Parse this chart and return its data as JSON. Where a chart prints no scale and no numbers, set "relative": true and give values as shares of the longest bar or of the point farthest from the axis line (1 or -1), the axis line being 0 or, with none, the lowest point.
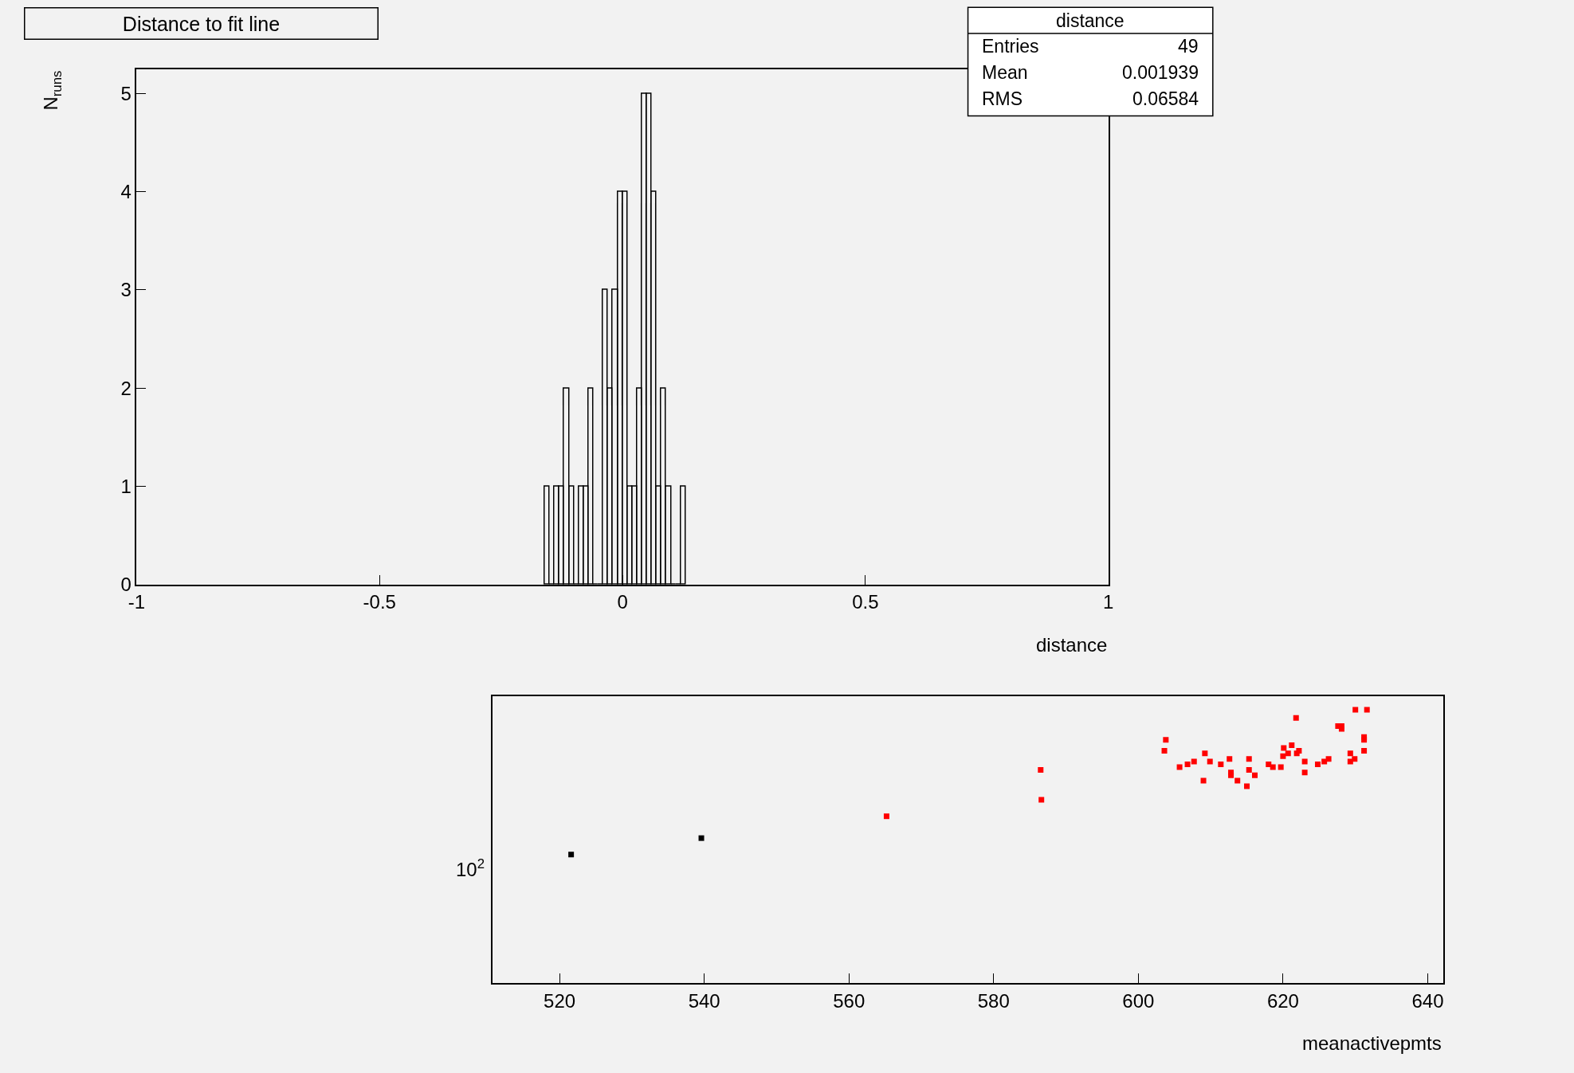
{
  "chart_data": [
    {
      "type": "histogram",
      "title": "Distance to fit line",
      "xlabel": "distance",
      "ylabel": "N$_{runs}$",
      "bins": [
        -0.16,
        -0.15,
        -0.14,
        -0.13,
        -0.12,
        -0.11,
        -0.1,
        -0.09,
        -0.08,
        -0.07,
        -0.06,
        -0.05,
        -0.04,
        -0.03,
        -0.02,
        -0.01,
        0.0,
        0.01,
        0.02,
        0.03,
        0.04,
        0.05,
        0.06,
        0.07,
        0.08,
        0.09,
        0.1,
        0.11,
        0.12,
        0.13
      ],
      "values": [
        1,
        0,
        1,
        1,
        2,
        1,
        0,
        1,
        1,
        2,
        0,
        0,
        3,
        2,
        3,
        4,
        4,
        1,
        1,
        2,
        5,
        5,
        4,
        1,
        2,
        1,
        0,
        0,
        1
      ],
      "color": "#000000",
      "xlim": [
        -1,
        1
      ],
      "xticks": [
        -1,
        -0.5,
        0,
        0.5,
        1
      ],
      "ylim": [
        0,
        5.25
      ],
      "yticks": [
        0,
        1,
        2,
        3,
        4,
        5
      ],
      "grid": false,
      "annotations": [
        "distance",
        "Entries",
        "49",
        "Mean",
        "0.001939",
        "RMS",
        "0.06584"
      ]
    },
    {
      "type": "scatter",
      "xlabel": "meanactivepmts",
      "relative": true,
      "marker": "square",
      "grid": false,
      "xlim": [
        510.7,
        642.2
      ],
      "xticks": [
        520,
        540,
        560,
        580,
        600,
        620,
        640
      ],
      "annotations": [
        "10$^{2}$"
      ],
      "series": [
        {
          "color": "#000000",
          "x": [
            521.6,
            539.6
          ],
          "values": [
            0.47,
            0.53
          ]
        },
        {
          "color": "#ff0000",
          "x": [
            565.2,
            586.5,
            586.6,
            603.8,
            603.6,
            605.7,
            606.8,
            607.7,
            609.2,
            609.0,
            609.9,
            611.4,
            612.6,
            612.8,
            612.8,
            613.7,
            615.0,
            615.3,
            615.3,
            616.1,
            618.0,
            618.6,
            619.7,
            620.0,
            620.1,
            620.7,
            621.2,
            621.8,
            621.9,
            622.2,
            623.0,
            623.0,
            624.8,
            625.7,
            626.3,
            627.6,
            628.1,
            628.1,
            629.3,
            629.3,
            629.9,
            630.0,
            631.2,
            631.2,
            631.2,
            631.6
          ],
          "values": [
            0.61,
            0.78,
            0.67,
            0.89,
            0.85,
            0.79,
            0.8,
            0.81,
            0.84,
            0.74,
            0.81,
            0.8,
            0.82,
            0.77,
            0.76,
            0.74,
            0.72,
            0.82,
            0.78,
            0.76,
            0.8,
            0.79,
            0.79,
            0.83,
            0.86,
            0.84,
            0.87,
            0.97,
            0.84,
            0.85,
            0.81,
            0.77,
            0.8,
            0.81,
            0.82,
            0.94,
            0.94,
            0.93,
            0.84,
            0.81,
            0.82,
            1,
            0.9,
            0.89,
            0.85,
            1
          ]
        }
      ]
    }
  ]
}
